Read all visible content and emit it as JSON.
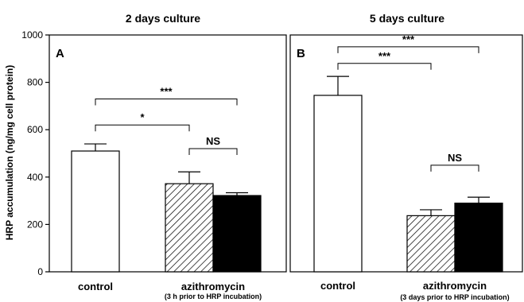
{
  "chart_data": {
    "type": "bar",
    "ylabel": "HRP accumulation (ng/mg cell protein)",
    "ylim": [
      0,
      1000
    ],
    "yticks": [
      0,
      200,
      400,
      600,
      800,
      1000
    ],
    "palette": {
      "hatch": "#000000",
      "filled": "#000000",
      "open": "#ffffff"
    },
    "panels": [
      {
        "letter": "A",
        "title": "2 days culture",
        "bars": [
          {
            "value": 510,
            "error": 30,
            "style": "open"
          },
          {
            "value": 372,
            "error": 50,
            "style": "hatched"
          },
          {
            "value": 322,
            "error": 12,
            "style": "filled"
          }
        ],
        "groups": [
          {
            "label": "control",
            "sublabel": "",
            "bars": [
              0
            ]
          },
          {
            "label": "azithromycin",
            "sublabel": "(3 h prior to HRP incubation)",
            "bars": [
              1,
              2
            ]
          }
        ],
        "comparisons": [
          {
            "from": 0,
            "to": 2,
            "y": 730,
            "label": "***"
          },
          {
            "from": 0,
            "to": 1,
            "y": 620,
            "label": "*"
          },
          {
            "from": 1,
            "to": 2,
            "y": 520,
            "label": "NS"
          }
        ]
      },
      {
        "letter": "B",
        "title": "5 days culture",
        "bars": [
          {
            "value": 745,
            "error": 80,
            "style": "open"
          },
          {
            "value": 237,
            "error": 25,
            "style": "hatched"
          },
          {
            "value": 290,
            "error": 25,
            "style": "filled"
          }
        ],
        "groups": [
          {
            "label": "control",
            "sublabel": "",
            "bars": [
              0
            ]
          },
          {
            "label": "azithromycin",
            "sublabel": "(3 days prior to HRP incubation)",
            "bars": [
              1,
              2
            ]
          }
        ],
        "comparisons": [
          {
            "from": 0,
            "to": 2,
            "y": 950,
            "label": "***"
          },
          {
            "from": 0,
            "to": 1,
            "y": 880,
            "label": "***"
          },
          {
            "from": 1,
            "to": 2,
            "y": 450,
            "label": "NS"
          }
        ]
      }
    ]
  }
}
